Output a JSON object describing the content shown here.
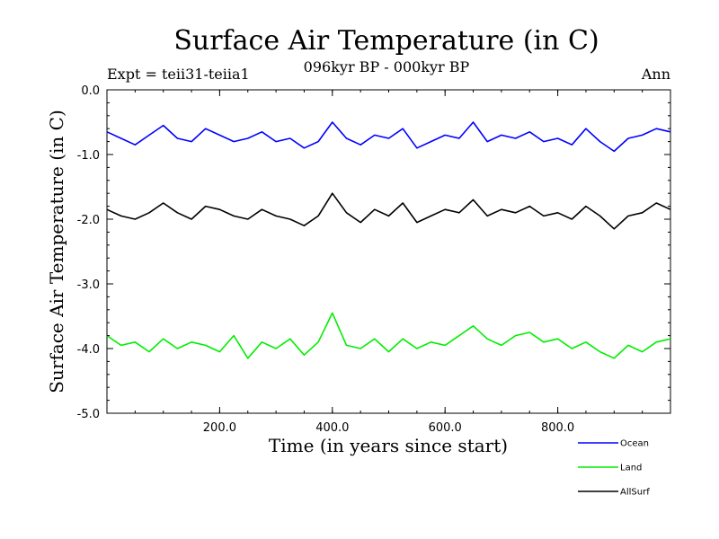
{
  "chart_data": {
    "type": "line",
    "title": "Surface Air Temperature (in C)",
    "subtitle": "096kyr BP - 000kyr BP",
    "left_label": "Expt = teii31-teiia1",
    "right_label": "Ann",
    "xlabel": "Time (in years since start)",
    "ylabel": "Surface Air Temperature (in C)",
    "xlim": [
      0,
      1000
    ],
    "ylim": [
      -5.0,
      0.0
    ],
    "x_ticks": [
      200,
      400,
      600,
      800
    ],
    "x_tick_labels": [
      "200.0",
      "400.0",
      "600.0",
      "800.0"
    ],
    "y_ticks": [
      0.0,
      -1.0,
      -2.0,
      -3.0,
      -4.0,
      -5.0
    ],
    "y_tick_labels": [
      "0.0",
      "-1.0",
      "-2.0",
      "-3.0",
      "-4.0",
      "-5.0"
    ],
    "legend_position": "bottom-right",
    "series": [
      {
        "name": "Ocean",
        "color": "#0000ff",
        "x": [
          0,
          25,
          50,
          75,
          100,
          125,
          150,
          175,
          200,
          225,
          250,
          275,
          300,
          325,
          350,
          375,
          400,
          425,
          450,
          475,
          500,
          525,
          550,
          575,
          600,
          625,
          650,
          675,
          700,
          725,
          750,
          775,
          800,
          825,
          850,
          875,
          900,
          925,
          950,
          975,
          1000
        ],
        "values": [
          -0.65,
          -0.75,
          -0.85,
          -0.7,
          -0.55,
          -0.75,
          -0.8,
          -0.6,
          -0.7,
          -0.8,
          -0.75,
          -0.65,
          -0.8,
          -0.75,
          -0.9,
          -0.8,
          -0.5,
          -0.75,
          -0.85,
          -0.7,
          -0.75,
          -0.6,
          -0.9,
          -0.8,
          -0.7,
          -0.75,
          -0.5,
          -0.8,
          -0.7,
          -0.75,
          -0.65,
          -0.8,
          -0.75,
          -0.85,
          -0.6,
          -0.8,
          -0.95,
          -0.75,
          -0.7,
          -0.6,
          -0.65
        ]
      },
      {
        "name": "Land",
        "color": "#00ee00",
        "x": [
          0,
          25,
          50,
          75,
          100,
          125,
          150,
          175,
          200,
          225,
          250,
          275,
          300,
          325,
          350,
          375,
          400,
          425,
          450,
          475,
          500,
          525,
          550,
          575,
          600,
          625,
          650,
          675,
          700,
          725,
          750,
          775,
          800,
          825,
          850,
          875,
          900,
          925,
          950,
          975,
          1000
        ],
        "values": [
          -3.8,
          -3.95,
          -3.9,
          -4.05,
          -3.85,
          -4.0,
          -3.9,
          -3.95,
          -4.05,
          -3.8,
          -4.15,
          -3.9,
          -4.0,
          -3.85,
          -4.1,
          -3.9,
          -3.45,
          -3.95,
          -4.0,
          -3.85,
          -4.05,
          -3.85,
          -4.0,
          -3.9,
          -3.95,
          -3.8,
          -3.65,
          -3.85,
          -3.95,
          -3.8,
          -3.75,
          -3.9,
          -3.85,
          -4.0,
          -3.9,
          -4.05,
          -4.15,
          -3.95,
          -4.05,
          -3.9,
          -3.85
        ]
      },
      {
        "name": "AllSurf",
        "color": "#000000",
        "x": [
          0,
          25,
          50,
          75,
          100,
          125,
          150,
          175,
          200,
          225,
          250,
          275,
          300,
          325,
          350,
          375,
          400,
          425,
          450,
          475,
          500,
          525,
          550,
          575,
          600,
          625,
          650,
          675,
          700,
          725,
          750,
          775,
          800,
          825,
          850,
          875,
          900,
          925,
          950,
          975,
          1000
        ],
        "values": [
          -1.85,
          -1.95,
          -2.0,
          -1.9,
          -1.75,
          -1.9,
          -2.0,
          -1.8,
          -1.85,
          -1.95,
          -2.0,
          -1.85,
          -1.95,
          -2.0,
          -2.1,
          -1.95,
          -1.6,
          -1.9,
          -2.05,
          -1.85,
          -1.95,
          -1.75,
          -2.05,
          -1.95,
          -1.85,
          -1.9,
          -1.7,
          -1.95,
          -1.85,
          -1.9,
          -1.8,
          -1.95,
          -1.9,
          -2.0,
          -1.8,
          -1.95,
          -2.15,
          -1.95,
          -1.9,
          -1.75,
          -1.85
        ]
      }
    ]
  }
}
